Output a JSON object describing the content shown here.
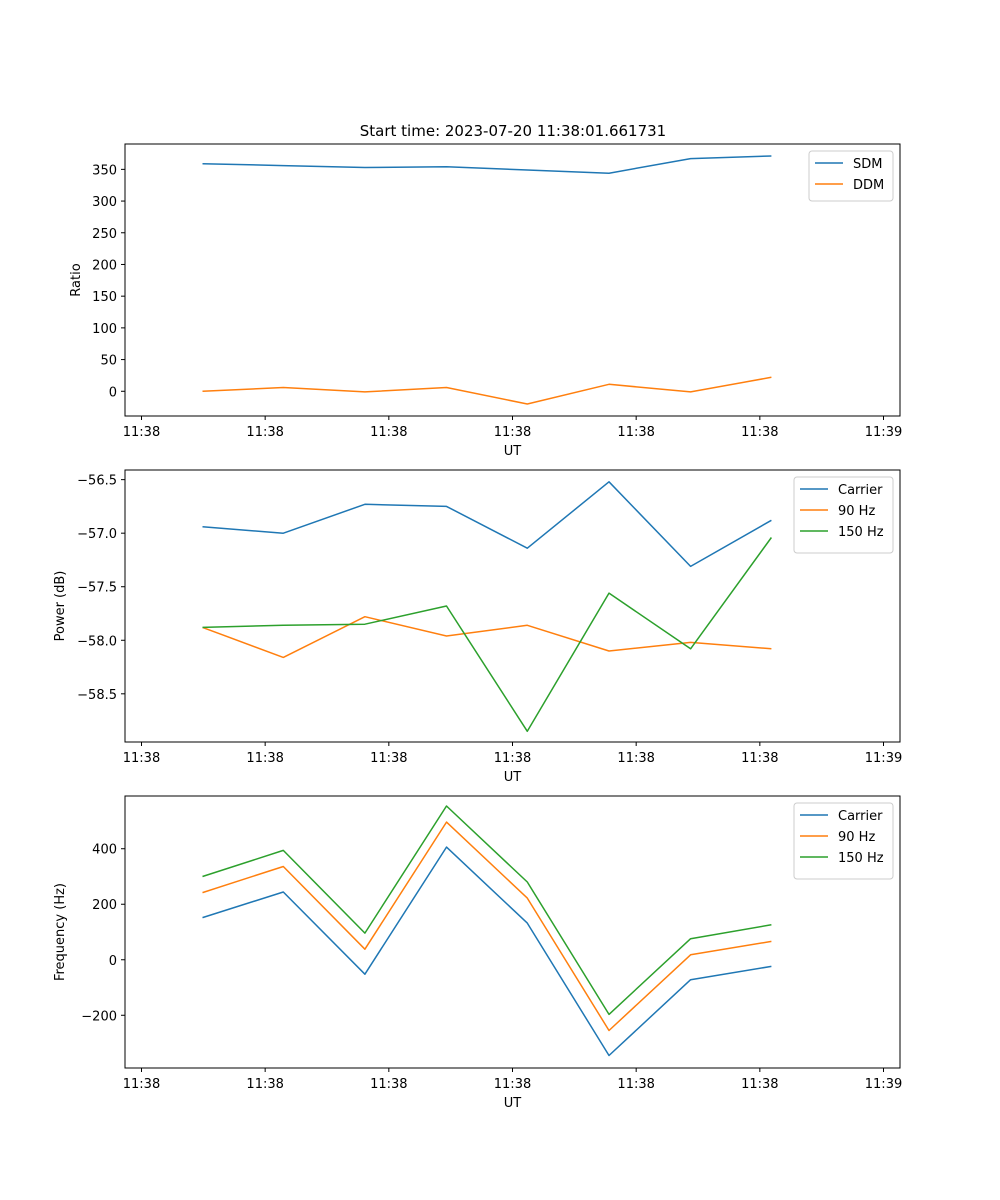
{
  "figure_title": "Start time: 2023-07-20 11:38:01.661731",
  "chart_data": [
    {
      "type": "line",
      "title": "Start time: 2023-07-20 11:38:01.661731",
      "xlabel": "UT",
      "ylabel": "Ratio",
      "xlim": [
        -0.2,
        9.2
      ],
      "x_ticks": [
        0,
        1.5,
        3,
        4.5,
        6,
        7.5,
        9
      ],
      "x_tick_labels": [
        "11:38",
        "11:38",
        "11:38",
        "11:38",
        "11:38",
        "11:38",
        "11:39"
      ],
      "ylim": [
        -39,
        390
      ],
      "y_ticks": [
        0,
        50,
        100,
        150,
        200,
        250,
        300,
        350
      ],
      "y_tick_labels": [
        "0",
        "50",
        "100",
        "150",
        "200",
        "250",
        "300",
        "350"
      ],
      "x": [
        0.74,
        1.72,
        2.71,
        3.7,
        4.68,
        5.67,
        6.66,
        7.64
      ],
      "series": [
        {
          "name": "SDM",
          "color": "#1f77b4",
          "values": [
            359,
            356,
            353,
            354,
            349,
            344,
            367,
            371
          ]
        },
        {
          "name": "DDM",
          "color": "#ff7f0e",
          "values": [
            0,
            6,
            -1,
            6,
            -20,
            11,
            -1,
            22
          ]
        }
      ],
      "legend": "upper right"
    },
    {
      "type": "line",
      "title": "",
      "xlabel": "UT",
      "ylabel": "Power (dB)",
      "xlim": [
        -0.2,
        9.2
      ],
      "x_ticks": [
        0,
        1.5,
        3,
        4.5,
        6,
        7.5,
        9
      ],
      "x_tick_labels": [
        "11:38",
        "11:38",
        "11:38",
        "11:38",
        "11:38",
        "11:38",
        "11:39"
      ],
      "ylim": [
        -58.95,
        -56.41
      ],
      "y_ticks": [
        -56.5,
        -57.0,
        -57.5,
        -58.0,
        -58.5
      ],
      "y_tick_labels": [
        "−56.5",
        "−57.0",
        "−57.5",
        "−58.0",
        "−58.5"
      ],
      "x": [
        0.74,
        1.72,
        2.71,
        3.7,
        4.68,
        5.67,
        6.66,
        7.64
      ],
      "series": [
        {
          "name": "Carrier",
          "color": "#1f77b4",
          "values": [
            -56.94,
            -57.0,
            -56.73,
            -56.75,
            -57.14,
            -56.52,
            -57.31,
            -56.88
          ]
        },
        {
          "name": "90 Hz",
          "color": "#ff7f0e",
          "values": [
            -57.88,
            -58.16,
            -57.78,
            -57.96,
            -57.86,
            -58.1,
            -58.02,
            -58.08
          ]
        },
        {
          "name": "150 Hz",
          "color": "#2ca02c",
          "values": [
            -57.88,
            -57.86,
            -57.85,
            -57.68,
            -58.85,
            -57.56,
            -58.08,
            -57.04
          ]
        }
      ],
      "legend": "upper right"
    },
    {
      "type": "line",
      "title": "",
      "xlabel": "UT",
      "ylabel": "Frequency (Hz)",
      "xlim": [
        -0.2,
        9.2
      ],
      "x_ticks": [
        0,
        1.5,
        3,
        4.5,
        6,
        7.5,
        9
      ],
      "x_tick_labels": [
        "11:38",
        "11:38",
        "11:38",
        "11:38",
        "11:38",
        "11:38",
        "11:39"
      ],
      "ylim": [
        -390,
        590
      ],
      "y_ticks": [
        400,
        200,
        0,
        -200
      ],
      "y_tick_labels": [
        "400",
        "200",
        "0",
        "−200"
      ],
      "x": [
        0.74,
        1.72,
        2.71,
        3.7,
        4.68,
        5.67,
        6.66,
        7.64
      ],
      "series": [
        {
          "name": "Carrier",
          "color": "#1f77b4",
          "values": [
            152,
            244,
            -52,
            406,
            132,
            -345,
            -72,
            -24
          ]
        },
        {
          "name": "90 Hz",
          "color": "#ff7f0e",
          "values": [
            242,
            336,
            38,
            496,
            222,
            -255,
            18,
            66
          ]
        },
        {
          "name": "150 Hz",
          "color": "#2ca02c",
          "values": [
            300,
            394,
            96,
            554,
            280,
            -197,
            76,
            126
          ]
        }
      ],
      "legend": "upper right"
    }
  ]
}
